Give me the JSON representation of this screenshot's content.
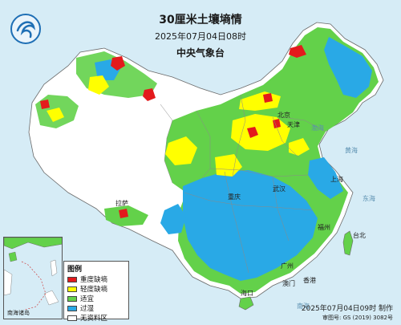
{
  "header": {
    "title": "30厘米土壤墒情",
    "time": "2025年07月04日08时",
    "org": "中央气象台"
  },
  "legend": {
    "title": "图例",
    "items": [
      {
        "label": "重度缺墒",
        "color": "#e31a1c"
      },
      {
        "label": "轻度缺墒",
        "color": "#ffff00"
      },
      {
        "label": "适宜",
        "color": "#63d14a"
      },
      {
        "label": "过湿",
        "color": "#29a9e6"
      },
      {
        "label": "无资料区",
        "color": "#ffffff"
      }
    ]
  },
  "inset": {
    "label": "南海诸岛"
  },
  "footer": {
    "made": "2025年07月04日09时 制作",
    "approval": "审图号: GS (2019) 3082号"
  },
  "places": {
    "beijing": "北京",
    "tianjin": "天津",
    "shanghai": "上海",
    "wuhan": "武汉",
    "guangzhou": "广州",
    "macau": "澳门",
    "hongkong": "香港",
    "taipei": "台北",
    "haikou": "海口",
    "lhasa": "拉萨",
    "chongqing": "重庆",
    "fuzhou": "福州"
  },
  "seas": {
    "bohai": "渤海",
    "yellow": "黄海",
    "east": "东海",
    "south": "南海"
  },
  "colors": {
    "severe": "#e31a1c",
    "light": "#ffff00",
    "suitable": "#63d14a",
    "wet": "#29a9e6",
    "nodata": "#ffffff",
    "sea": "#d6ecf6",
    "neighbor": "#ffffff"
  }
}
